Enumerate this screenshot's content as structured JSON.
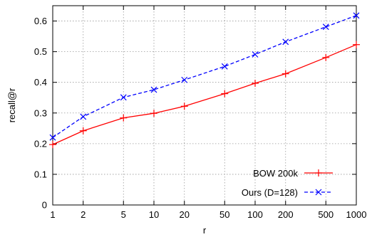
{
  "chart_data": {
    "type": "line",
    "title": "",
    "xlabel": "r",
    "ylabel": "recall@r",
    "x_scale": "log",
    "x": [
      1,
      2,
      5,
      10,
      20,
      50,
      100,
      200,
      500,
      1000
    ],
    "x_tick_labels": [
      "1",
      "2",
      "5",
      "10",
      "20",
      "50",
      "100",
      "200",
      "500",
      "1000"
    ],
    "xlim": [
      1,
      1000
    ],
    "ylim": [
      0,
      0.65
    ],
    "y_ticks": [
      0,
      0.1,
      0.2,
      0.3,
      0.4,
      0.5,
      0.6
    ],
    "y_tick_labels": [
      "0",
      "0.1",
      "0.2",
      "0.3",
      "0.4",
      "0.5",
      "0.6"
    ],
    "grid": true,
    "legend_position": "bottom-right",
    "series": [
      {
        "name": "BOW 200k",
        "color": "#ff0000",
        "line_style": "solid",
        "marker": "plus",
        "values": [
          0.197,
          0.242,
          0.284,
          0.299,
          0.322,
          0.363,
          0.397,
          0.428,
          0.481,
          0.523
        ]
      },
      {
        "name": "Ours (D=128)",
        "color": "#0000ff",
        "line_style": "dashed",
        "marker": "cross",
        "values": [
          0.22,
          0.288,
          0.351,
          0.376,
          0.408,
          0.452,
          0.491,
          0.532,
          0.581,
          0.618
        ]
      }
    ]
  }
}
